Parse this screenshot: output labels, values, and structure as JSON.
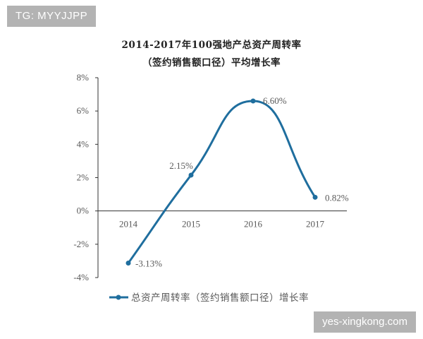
{
  "overlay": {
    "tag": "TG: MYYJJPP",
    "watermark": "yes-xingkong.com"
  },
  "colors": {
    "series": "#1f6e9e",
    "axis": "#333333",
    "text": "#595959",
    "overlay_bg": "#b3b3b3"
  },
  "chart_data": {
    "type": "line",
    "title": "2014-2017年100强地产总资产周转率",
    "subtitle": "（签约销售额口径）平均增长率",
    "categories": [
      "2014",
      "2015",
      "2016",
      "2017"
    ],
    "ylim": [
      -4,
      8
    ],
    "yticks": [
      -4,
      -2,
      0,
      2,
      4,
      6,
      8
    ],
    "ytick_labels": [
      "-4%",
      "-2%",
      "0%",
      "2%",
      "4%",
      "6%",
      "8%"
    ],
    "smooth": true,
    "grid": false,
    "legend": "bottom",
    "series": [
      {
        "name": "总资产周转率（签约销售额口径）增长率",
        "values": [
          -3.13,
          2.15,
          6.6,
          0.82
        ],
        "labels": [
          "-3.13%",
          "2.15%",
          "6.60%",
          "0.82%"
        ]
      }
    ]
  }
}
